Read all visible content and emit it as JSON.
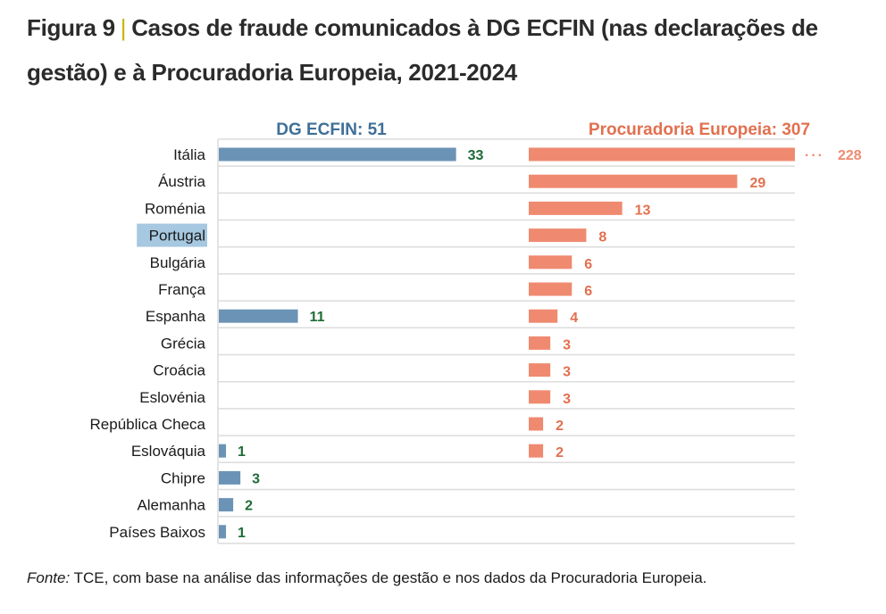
{
  "figure": {
    "label": "Figura 9",
    "separator": "|",
    "title": "Casos de fraude comunicados à DG ECFIN (nas declarações de gestão) e à Procuradoria Europeia, 2021-2024"
  },
  "source": {
    "prefix": "Fonte:",
    "text": " TCE, com base na análise das informações de gestão e nos dados da Procuradoria Europeia."
  },
  "chart_data": {
    "type": "bar",
    "orientation": "horizontal",
    "title": "Casos de fraude comunicados à DG ECFIN (nas declarações de gestão) e à Procuradoria Europeia, 2021-2024",
    "xlabel": "",
    "ylabel": "",
    "grid": true,
    "highlighted_category": "Portugal",
    "categories": [
      "Itália",
      "Áustria",
      "Roménia",
      "Portugal",
      "Bulgária",
      "França",
      "Espanha",
      "Grécia",
      "Croácia",
      "Eslovénia",
      "República Checa",
      "Eslováquia",
      "Chipre",
      "Alemanha",
      "Países Baixos"
    ],
    "series": [
      {
        "name": "DG ECFIN",
        "panel_title": "DG ECFIN: 51",
        "total": 51,
        "color": "#6b93b5",
        "label_color": "#1e6b37",
        "values": [
          33,
          null,
          null,
          null,
          null,
          null,
          11,
          null,
          null,
          null,
          null,
          1,
          3,
          2,
          1
        ]
      },
      {
        "name": "Procuradoria Europeia",
        "panel_title": "Procuradoria Europeia: 307",
        "total": 307,
        "color": "#ef8a70",
        "label_color": "#e2704f",
        "truncated": {
          "category": "Itália",
          "marker": "···"
        },
        "values": [
          228,
          29,
          13,
          8,
          6,
          6,
          4,
          3,
          3,
          3,
          2,
          2,
          null,
          null,
          null
        ]
      }
    ],
    "title_colors": {
      "DG ECFIN": "#3f6f98",
      "Procuradoria Europeia": "#e2704f"
    },
    "highlight_color": "#a6c8e0"
  }
}
